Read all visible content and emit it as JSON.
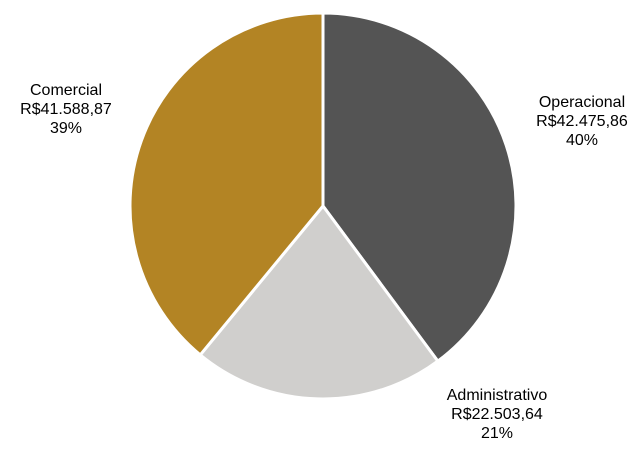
{
  "chart_data": {
    "type": "pie",
    "start_angle_deg": 0,
    "direction": "clockwise",
    "slice_border_color": "#ffffff",
    "slices": [
      {
        "name": "Operacional",
        "value": 42475.86,
        "value_label": "R$42.475,86",
        "percent_label": "40%",
        "color": "#545454"
      },
      {
        "name": "Administrativo",
        "value": 22503.64,
        "value_label": "R$22.503,64",
        "percent_label": "21%",
        "color": "#d0cfcd"
      },
      {
        "name": "Comercial",
        "value": 41588.87,
        "value_label": "R$41.588,87",
        "percent_label": "39%",
        "color": "#b38424"
      }
    ]
  }
}
